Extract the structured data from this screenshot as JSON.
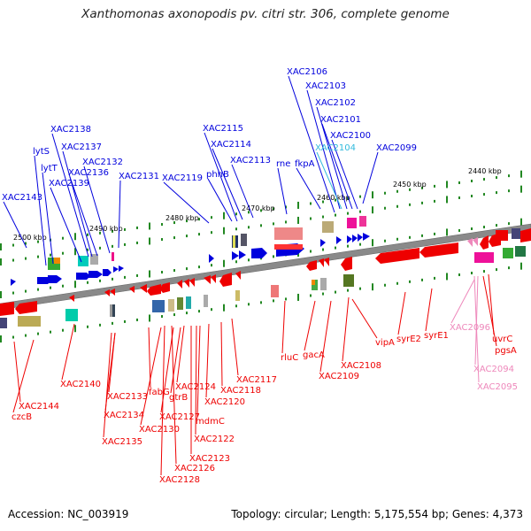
{
  "title": "Xanthomonas axonopodis pv. citri str. 306, complete genome",
  "footer": {
    "accession": "Accession: NC_003919",
    "summary": "Topology: circular; Length: 5,175,554 bp; Genes: 4,373"
  },
  "colors": {
    "forward": "#0000dd",
    "reverse": "#ee0000",
    "highlight_cyan": "#33bbdd",
    "highlight_pink": "#ee88bb",
    "backbone": "#808080",
    "tick": "#228822"
  },
  "scale": {
    "units": "kbp",
    "ticks": [
      "2500 kbp",
      "2490 kbp",
      "2480 kbp",
      "2470 kbp",
      "2460 kbp",
      "2450 kbp",
      "2440 kbp"
    ]
  },
  "genes_top": [
    "XAC2143",
    "lytS",
    "lytT",
    "XAC2139",
    "XAC2138",
    "XAC2137",
    "XAC2136",
    "XAC2132",
    "XAC2131",
    "XAC2119",
    "phhB",
    "XAC2115",
    "XAC2114",
    "XAC2113",
    "rne",
    "fkpA",
    "XAC2106",
    "XAC2103",
    "XAC2102",
    "XAC2101",
    "XAC2100",
    "XAC2104",
    "XAC2099"
  ],
  "genes_bottom": [
    "XAC2144",
    "czcB",
    "XAC2140",
    "XAC2133",
    "XAC2134",
    "XAC2135",
    "fabG",
    "XAC2130",
    "XAC2127",
    "gtrB",
    "XAC2124",
    "XAC2126",
    "XAC2128",
    "XAC2123",
    "XAC2122",
    "mdmC",
    "XAC2120",
    "XAC2118",
    "XAC2117",
    "rluC",
    "gacA",
    "XAC2109",
    "XAC2108",
    "vipA",
    "syrE2",
    "syrE1",
    "XAC2096",
    "uvrC",
    "pgsA",
    "XAC2094",
    "XAC2095"
  ]
}
